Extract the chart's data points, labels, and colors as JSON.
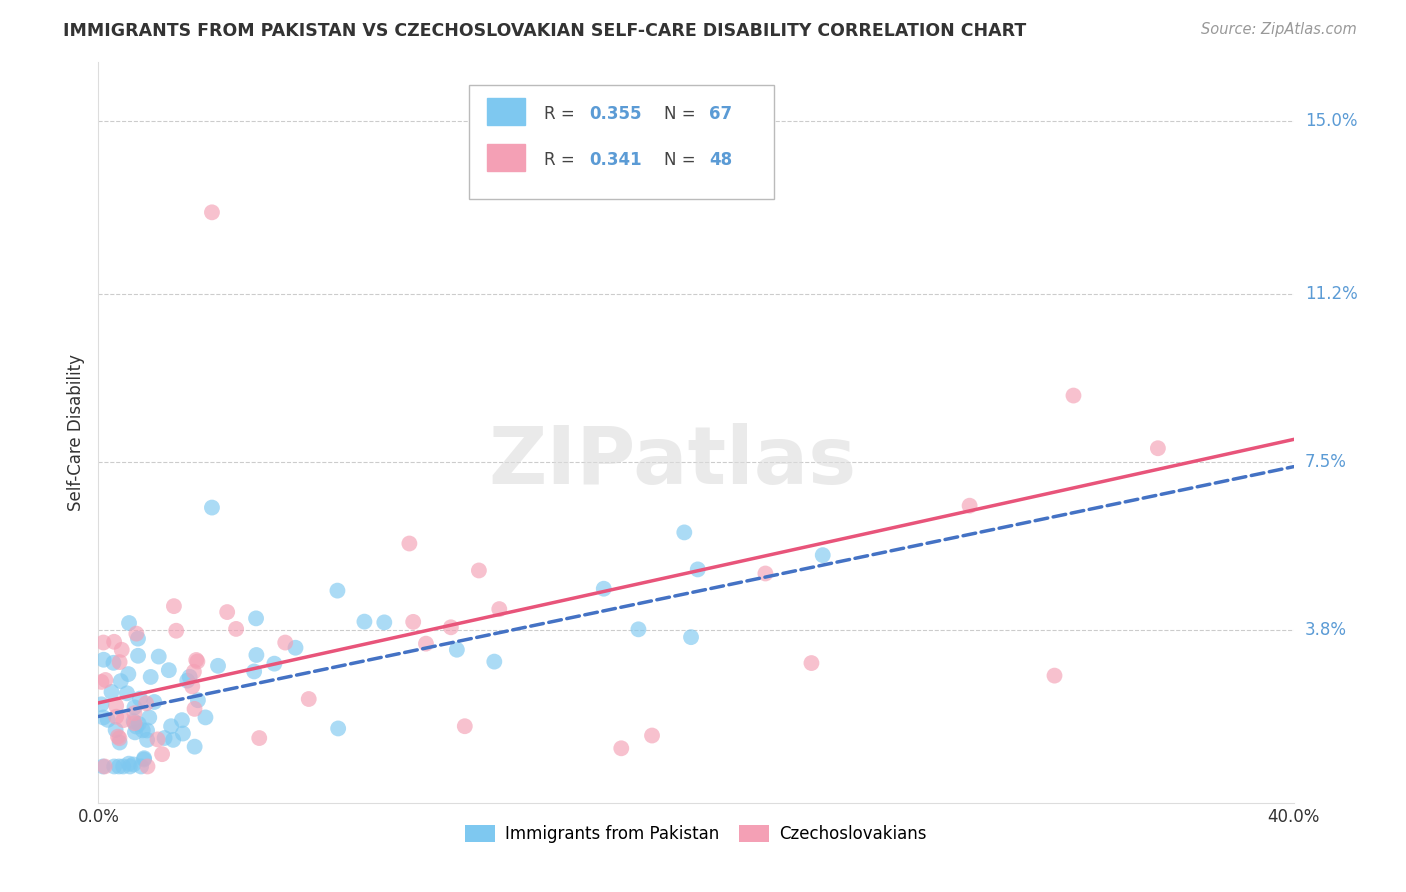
{
  "title": "IMMIGRANTS FROM PAKISTAN VS CZECHOSLOVAKIAN SELF-CARE DISABILITY CORRELATION CHART",
  "source": "Source: ZipAtlas.com",
  "ylabel": "Self-Care Disability",
  "ytick_labels": [
    "3.8%",
    "7.5%",
    "11.2%",
    "15.0%"
  ],
  "ytick_values": [
    0.038,
    0.075,
    0.112,
    0.15
  ],
  "xlim": [
    0.0,
    0.4
  ],
  "ylim": [
    0.0,
    0.163
  ],
  "color_blue": "#7EC8F0",
  "color_pink": "#F4A0B5",
  "line_blue": "#4472C4",
  "line_pink": "#E8547A",
  "background": "#FFFFFF",
  "grid_color": "#CCCCCC",
  "label_color": "#5B9BD5",
  "watermark": "ZIPatlas",
  "blue_line_x0": 0.0,
  "blue_line_y0": 0.019,
  "blue_line_x1": 0.4,
  "blue_line_y1": 0.074,
  "pink_line_x0": 0.0,
  "pink_line_y0": 0.022,
  "pink_line_x1": 0.4,
  "pink_line_y1": 0.08
}
